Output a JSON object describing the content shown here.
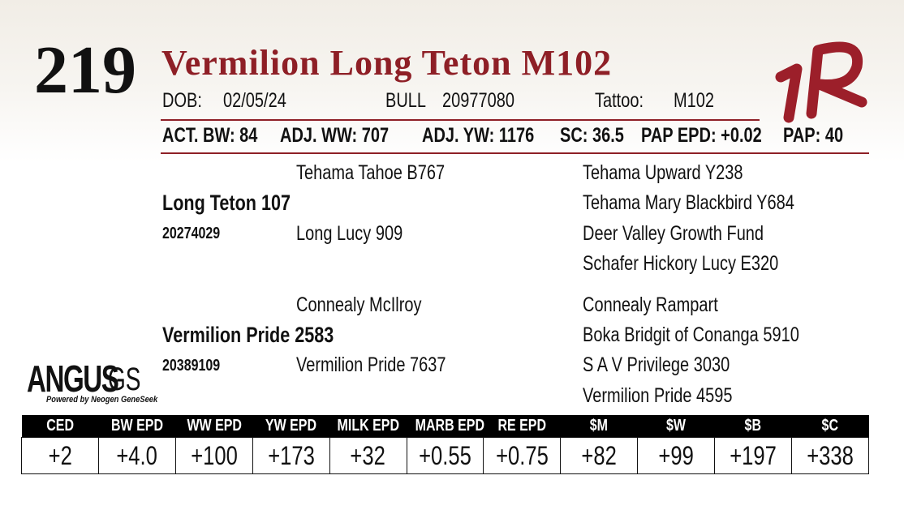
{
  "lot": "219",
  "name": "Vermilion Long Teton M102",
  "info": [
    {
      "label": "DOB:",
      "value": "02/05/24"
    },
    {
      "label": "BULL",
      "value": "20977080"
    },
    {
      "label": "Tattoo:",
      "value": "M102"
    }
  ],
  "stats": [
    "ACT. BW: 84",
    "ADJ. WW: 707",
    "ADJ. YW: 1176",
    "SC: 36.5",
    "PAP EPD: +0.02",
    "PAP: 40"
  ],
  "pedigree": {
    "sire": {
      "name": "Long Teton 107",
      "reg": "20274029",
      "sire": "Tehama Tahoe B767",
      "dam": "Long Lucy 909",
      "grandparents": [
        "Tehama Upward Y238",
        "Tehama Mary Blackbird Y684",
        "Deer Valley Growth Fund",
        "Schafer Hickory Lucy E320"
      ]
    },
    "dam": {
      "name": "Vermilion Pride 2583",
      "reg": "20389109",
      "sire": "Connealy McIlroy",
      "dam": "Vermilion Pride 7637",
      "grandparents": [
        "Connealy Rampart",
        "Boka Bridgit of Conanga 5910",
        "S A V Privilege 3030",
        "Vermilion Pride 4595"
      ]
    }
  },
  "logo": {
    "brand": "ANGUS",
    "suffix": "GS",
    "tagline": "Powered by Neogen GeneSeek"
  },
  "epd_table": {
    "headers": [
      "CED",
      "BW EPD",
      "WW EPD",
      "YW EPD",
      "MILK EPD",
      "MARB EPD",
      "RE EPD",
      "$M",
      "$W",
      "$B",
      "$C"
    ],
    "values": [
      "+2",
      "+4.0",
      "+100",
      "+173",
      "+32",
      "+0.55",
      "+0.75",
      "+82",
      "+99",
      "+197",
      "+338"
    ]
  }
}
